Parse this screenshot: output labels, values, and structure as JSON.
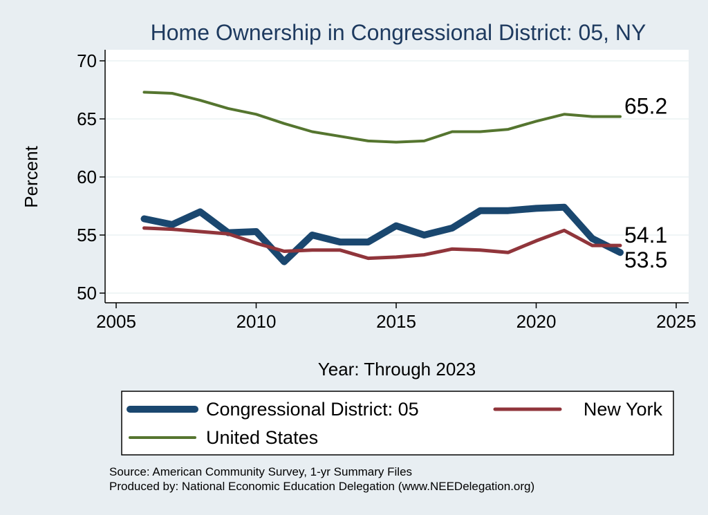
{
  "chart_data": {
    "type": "line",
    "title": "Home Ownership in Congressional District:  05, NY",
    "xlabel": "Year: Through 2023",
    "ylabel": "Percent",
    "xlim": [
      2005,
      2025
    ],
    "ylim": [
      50,
      70
    ],
    "xticks": [
      "2005",
      "2010",
      "2015",
      "2020",
      "2025"
    ],
    "yticks": [
      "50",
      "55",
      "60",
      "65",
      "70"
    ],
    "grid": "horizontal",
    "legend_position": "bottom",
    "series": [
      {
        "name": "Congressional District:  05",
        "color": "#1a476f",
        "x": [
          2006,
          2007,
          2008,
          2009,
          2010,
          2011,
          2012,
          2013,
          2014,
          2015,
          2016,
          2017,
          2018,
          2019,
          2020,
          2021,
          2022,
          2023
        ],
        "values": [
          56.4,
          55.9,
          57.0,
          55.2,
          55.3,
          52.7,
          55.0,
          54.4,
          54.4,
          55.8,
          55.0,
          55.6,
          57.1,
          57.1,
          57.3,
          57.4,
          54.7,
          53.5
        ],
        "end_label": "53.5"
      },
      {
        "name": "New York",
        "color": "#90353b",
        "x": [
          2006,
          2007,
          2008,
          2009,
          2010,
          2011,
          2012,
          2013,
          2014,
          2015,
          2016,
          2017,
          2018,
          2019,
          2020,
          2021,
          2022,
          2023
        ],
        "values": [
          55.6,
          55.5,
          55.3,
          55.1,
          54.3,
          53.6,
          53.7,
          53.7,
          53.0,
          53.1,
          53.3,
          53.8,
          53.7,
          53.5,
          54.5,
          55.4,
          54.1,
          54.1
        ],
        "end_label": "54.1"
      },
      {
        "name": "United States",
        "color": "#55752f",
        "x": [
          2006,
          2007,
          2008,
          2009,
          2010,
          2011,
          2012,
          2013,
          2014,
          2015,
          2016,
          2017,
          2018,
          2019,
          2020,
          2021,
          2022,
          2023
        ],
        "values": [
          67.3,
          67.2,
          66.6,
          65.9,
          65.4,
          64.6,
          63.9,
          63.5,
          63.1,
          63.0,
          63.1,
          63.9,
          63.9,
          64.1,
          64.8,
          65.4,
          65.2,
          65.2
        ],
        "end_label": "65.2"
      }
    ]
  },
  "source_lines": [
    "Source: American Community Survey, 1-yr Summary Files",
    "Produced by: National Economic Education Delegation (www.NEEDelegation.org)"
  ]
}
